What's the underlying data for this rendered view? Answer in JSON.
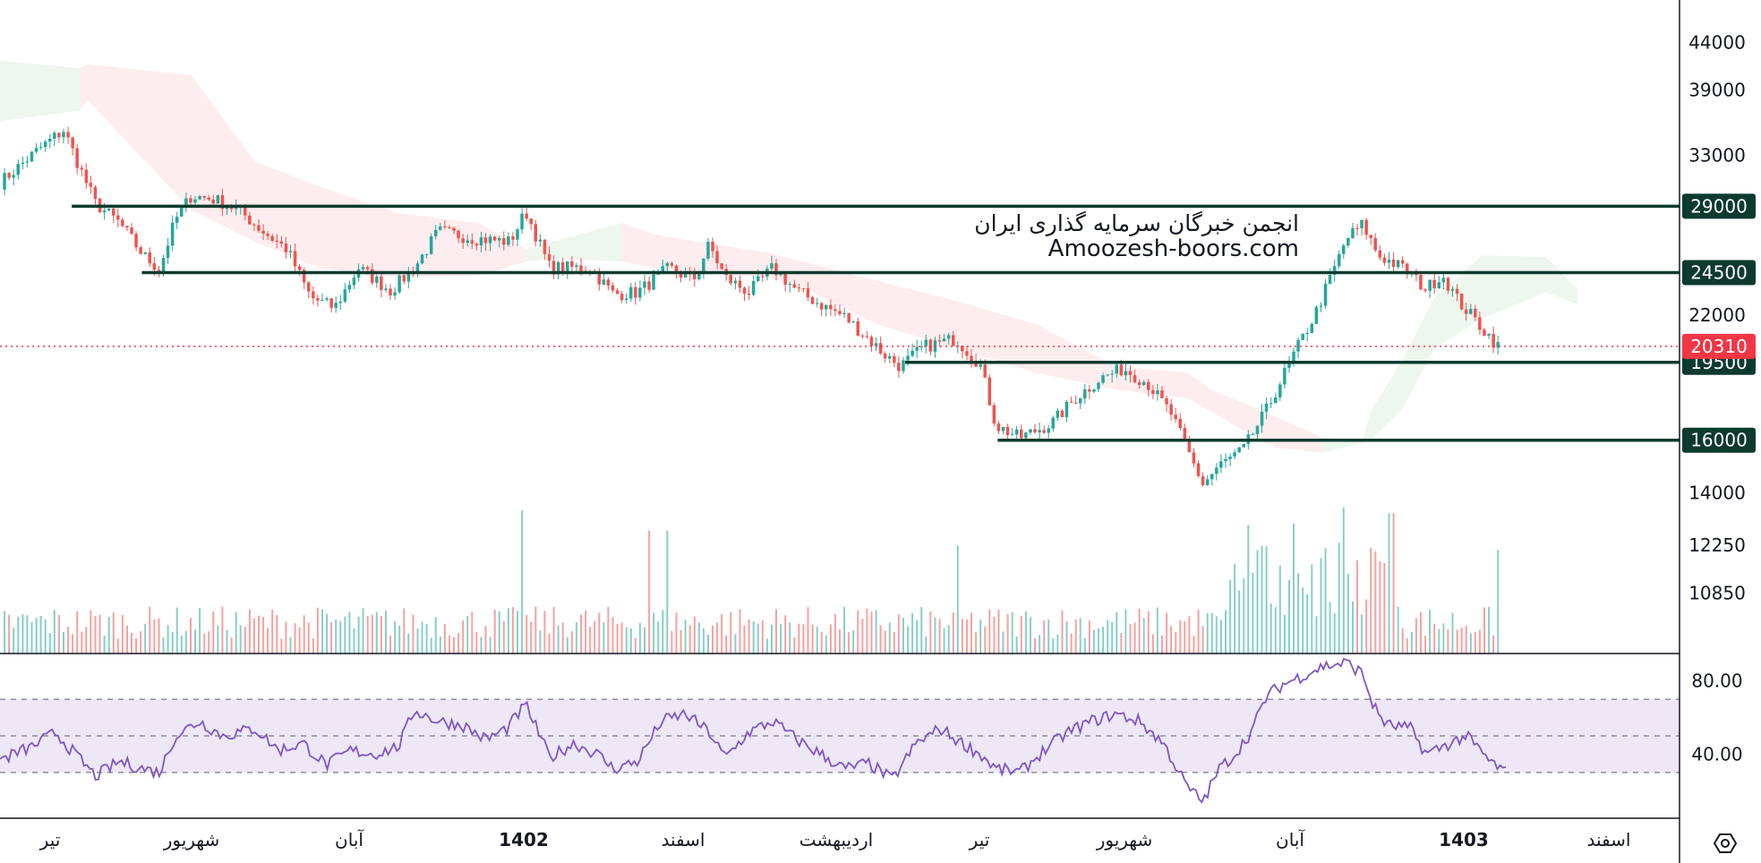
{
  "chart_data": {
    "type": "candlestick",
    "price_axis": {
      "scale": "log",
      "ticks": [
        44000,
        39000,
        33000,
        29000,
        24500,
        22000,
        20310,
        19500,
        16000,
        14000,
        12250,
        10850
      ],
      "range": [
        9300,
        49000
      ]
    },
    "time_axis": {
      "labels": [
        {
          "text": "تیر",
          "bold": false
        },
        {
          "text": "شهریور",
          "bold": false
        },
        {
          "text": "آبان",
          "bold": false
        },
        {
          "text": "1402",
          "bold": true
        },
        {
          "text": "اسفند",
          "bold": false
        },
        {
          "text": "اردیبهشت",
          "bold": false
        },
        {
          "text": "تیر",
          "bold": false
        },
        {
          "text": "شهریور",
          "bold": false
        },
        {
          "text": "آبان",
          "bold": false
        },
        {
          "text": "1403",
          "bold": true
        },
        {
          "text": "اسفند",
          "bold": false
        }
      ]
    },
    "levels": [
      {
        "value": 29000,
        "label": "29000",
        "from_fraction": 0.045
      },
      {
        "value": 24500,
        "label": "24500",
        "from_fraction": 0.089
      },
      {
        "value": 19500,
        "label": "19500",
        "from_fraction": 0.568
      },
      {
        "value": 16000,
        "label": "16000",
        "from_fraction": 0.626
      }
    ],
    "last_price": {
      "value": 20310,
      "label": "20310"
    },
    "price_path": [
      [
        0,
        30800
      ],
      [
        0.025,
        33600
      ],
      [
        0.04,
        35200
      ],
      [
        0.05,
        32000
      ],
      [
        0.06,
        29200
      ],
      [
        0.075,
        27800
      ],
      [
        0.09,
        25600
      ],
      [
        0.1,
        24700
      ],
      [
        0.11,
        28000
      ],
      [
        0.12,
        29800
      ],
      [
        0.135,
        29500
      ],
      [
        0.15,
        28700
      ],
      [
        0.165,
        27200
      ],
      [
        0.18,
        26000
      ],
      [
        0.195,
        23000
      ],
      [
        0.21,
        22400
      ],
      [
        0.225,
        24800
      ],
      [
        0.245,
        23400
      ],
      [
        0.26,
        24800
      ],
      [
        0.275,
        27200
      ],
      [
        0.3,
        26700
      ],
      [
        0.32,
        26500
      ],
      [
        0.33,
        28600
      ],
      [
        0.345,
        24800
      ],
      [
        0.37,
        24800
      ],
      [
        0.385,
        23200
      ],
      [
        0.4,
        23300
      ],
      [
        0.42,
        24800
      ],
      [
        0.435,
        24000
      ],
      [
        0.445,
        26300
      ],
      [
        0.455,
        24200
      ],
      [
        0.47,
        23300
      ],
      [
        0.485,
        24800
      ],
      [
        0.5,
        23400
      ],
      [
        0.515,
        22600
      ],
      [
        0.53,
        21900
      ],
      [
        0.545,
        20700
      ],
      [
        0.555,
        19900
      ],
      [
        0.565,
        19300
      ],
      [
        0.58,
        20300
      ],
      [
        0.6,
        20700
      ],
      [
        0.615,
        19400
      ],
      [
        0.625,
        16600
      ],
      [
        0.64,
        16100
      ],
      [
        0.66,
        16700
      ],
      [
        0.675,
        17800
      ],
      [
        0.69,
        18700
      ],
      [
        0.705,
        19200
      ],
      [
        0.72,
        18500
      ],
      [
        0.735,
        17100
      ],
      [
        0.745,
        15600
      ],
      [
        0.755,
        14300
      ],
      [
        0.765,
        15000
      ],
      [
        0.78,
        15600
      ],
      [
        0.795,
        17300
      ],
      [
        0.81,
        19600
      ],
      [
        0.825,
        22000
      ],
      [
        0.835,
        24200
      ],
      [
        0.845,
        26700
      ],
      [
        0.855,
        27700
      ],
      [
        0.865,
        25600
      ],
      [
        0.88,
        24800
      ],
      [
        0.895,
        23500
      ],
      [
        0.905,
        24400
      ],
      [
        0.915,
        22800
      ],
      [
        0.93,
        21300
      ],
      [
        0.94,
        20310
      ]
    ],
    "cloud": [
      [
        0.0,
        42000,
        36000,
        "up"
      ],
      [
        0.05,
        41200,
        37000,
        "up"
      ],
      [
        0.055,
        41600,
        38000,
        "down"
      ],
      [
        0.12,
        40500,
        28700,
        "down"
      ],
      [
        0.16,
        32500,
        26500,
        "down"
      ],
      [
        0.2,
        30500,
        24800,
        "down"
      ],
      [
        0.25,
        28500,
        24200,
        "down"
      ],
      [
        0.3,
        27800,
        24300,
        "down"
      ],
      [
        0.33,
        26000,
        25200,
        "down"
      ],
      [
        0.35,
        26600,
        25400,
        "up"
      ],
      [
        0.39,
        27800,
        25200,
        "up"
      ],
      [
        0.41,
        27000,
        24800,
        "down"
      ],
      [
        0.48,
        25800,
        24200,
        "down"
      ],
      [
        0.5,
        25300,
        23800,
        "down"
      ],
      [
        0.55,
        24000,
        21500,
        "down"
      ],
      [
        0.6,
        22800,
        20200,
        "down"
      ],
      [
        0.65,
        21500,
        19000,
        "down"
      ],
      [
        0.7,
        19300,
        18200,
        "down"
      ],
      [
        0.745,
        19000,
        17800,
        "down"
      ],
      [
        0.76,
        18200,
        17200,
        "down"
      ],
      [
        0.8,
        17000,
        15700,
        "down"
      ],
      [
        0.83,
        16100,
        15500,
        "down"
      ],
      [
        0.855,
        16000,
        15900,
        "up"
      ],
      [
        0.86,
        17200,
        16000,
        "up"
      ],
      [
        0.88,
        19600,
        17300,
        "up"
      ],
      [
        0.9,
        23000,
        20200,
        "up"
      ],
      [
        0.93,
        25600,
        21800,
        "up"
      ],
      [
        0.97,
        25500,
        23300,
        "up"
      ],
      [
        0.99,
        23500,
        22600,
        "up"
      ]
    ],
    "volume": {
      "spikes": [
        [
          0.328,
          0.97
        ],
        [
          0.407,
          0.83
        ],
        [
          0.418,
          0.83
        ],
        [
          0.602,
          0.73
        ],
        [
          0.782,
          0.87
        ],
        [
          0.793,
          0.73
        ],
        [
          0.813,
          0.88
        ],
        [
          0.842,
          0.99
        ],
        [
          0.873,
          0.95
        ],
        [
          0.94,
          0.7
        ]
      ]
    },
    "rsi": {
      "ticks": [
        80.0,
        40.0
      ],
      "tick_labels": [
        "80.00",
        "40.00"
      ],
      "upper": 70,
      "mid": 50,
      "lower": 30,
      "range": [
        5,
        95
      ],
      "path": [
        [
          0,
          37
        ],
        [
          0.02,
          44
        ],
        [
          0.035,
          52
        ],
        [
          0.045,
          42
        ],
        [
          0.06,
          28
        ],
        [
          0.075,
          36
        ],
        [
          0.09,
          32
        ],
        [
          0.1,
          30
        ],
        [
          0.11,
          50
        ],
        [
          0.125,
          58
        ],
        [
          0.14,
          50
        ],
        [
          0.16,
          54
        ],
        [
          0.175,
          42
        ],
        [
          0.19,
          46
        ],
        [
          0.205,
          34
        ],
        [
          0.22,
          42
        ],
        [
          0.235,
          40
        ],
        [
          0.25,
          44
        ],
        [
          0.26,
          64
        ],
        [
          0.275,
          58
        ],
        [
          0.29,
          56
        ],
        [
          0.305,
          48
        ],
        [
          0.318,
          54
        ],
        [
          0.33,
          67
        ],
        [
          0.345,
          38
        ],
        [
          0.36,
          46
        ],
        [
          0.375,
          40
        ],
        [
          0.385,
          32
        ],
        [
          0.4,
          36
        ],
        [
          0.415,
          58
        ],
        [
          0.43,
          62
        ],
        [
          0.445,
          52
        ],
        [
          0.455,
          38
        ],
        [
          0.47,
          52
        ],
        [
          0.485,
          58
        ],
        [
          0.5,
          48
        ],
        [
          0.515,
          40
        ],
        [
          0.53,
          32
        ],
        [
          0.545,
          35
        ],
        [
          0.56,
          26
        ],
        [
          0.575,
          46
        ],
        [
          0.59,
          54
        ],
        [
          0.6,
          48
        ],
        [
          0.615,
          40
        ],
        [
          0.625,
          32
        ],
        [
          0.64,
          30
        ],
        [
          0.655,
          42
        ],
        [
          0.67,
          52
        ],
        [
          0.685,
          58
        ],
        [
          0.7,
          62
        ],
        [
          0.715,
          58
        ],
        [
          0.73,
          46
        ],
        [
          0.745,
          22
        ],
        [
          0.755,
          14
        ],
        [
          0.765,
          32
        ],
        [
          0.775,
          40
        ],
        [
          0.785,
          52
        ],
        [
          0.795,
          72
        ],
        [
          0.805,
          78
        ],
        [
          0.82,
          84
        ],
        [
          0.83,
          88
        ],
        [
          0.845,
          90
        ],
        [
          0.855,
          84
        ],
        [
          0.862,
          66
        ],
        [
          0.87,
          56
        ],
        [
          0.885,
          54
        ],
        [
          0.895,
          40
        ],
        [
          0.91,
          46
        ],
        [
          0.92,
          50
        ],
        [
          0.935,
          36
        ],
        [
          0.945,
          30
        ]
      ]
    },
    "colors": {
      "up": "#26a69a",
      "down": "#ef5350",
      "level": "#0c3b2e",
      "last": "#f23645",
      "rsi_line": "#7e57c2",
      "rsi_band": "#ede7f6"
    }
  },
  "watermark": {
    "line1": "انجمن خبرگان سرمایه گذاری ایران",
    "line2": "Amoozesh-boors.com"
  },
  "settings_icon": "settings-hexagon-icon"
}
